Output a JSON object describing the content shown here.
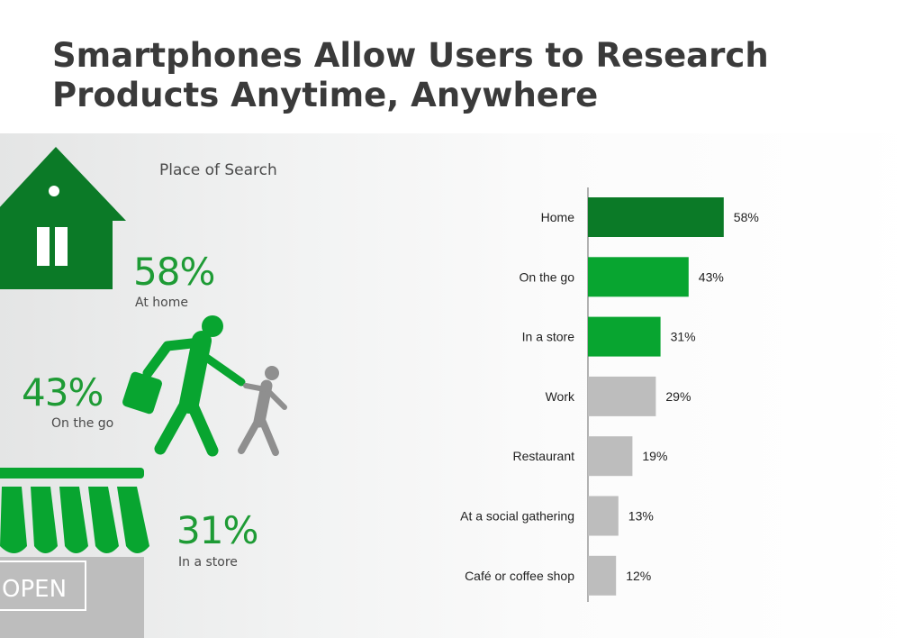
{
  "page": {
    "title_line1": "Smartphones Allow Users to Research",
    "title_line2": "Products Anytime, Anywhere"
  },
  "infographic": {
    "subtitle": "Place of Search",
    "home": {
      "pct": "58%",
      "label": "At home",
      "icon": "house-icon"
    },
    "on_the_go": {
      "pct": "43%",
      "label": "On the go",
      "icon": "walking-people-icon"
    },
    "in_store": {
      "pct": "31%",
      "label": "In a store",
      "icon": "storefront-icon",
      "sign": "OPEN"
    }
  },
  "colors": {
    "dark_green": "#0b7a27",
    "bright_green": "#08a530",
    "gray": "#bdbdbd",
    "accent_text_green": "#1e9b35"
  },
  "chart_data": {
    "type": "bar",
    "orientation": "horizontal",
    "categories": [
      "Home",
      "On the go",
      "In a store",
      "Work",
      "Restaurant",
      "At a social gathering",
      "Café or coffee shop"
    ],
    "values": [
      58,
      43,
      31,
      29,
      19,
      13,
      12
    ],
    "value_labels": [
      "58%",
      "43%",
      "31%",
      "29%",
      "19%",
      "13%",
      "12%"
    ],
    "bar_colors": [
      "#0b7a27",
      "#08a530",
      "#08a530",
      "#bdbdbd",
      "#bdbdbd",
      "#bdbdbd",
      "#bdbdbd"
    ],
    "xlim": [
      0,
      100
    ],
    "grid": false,
    "legend": "none"
  }
}
